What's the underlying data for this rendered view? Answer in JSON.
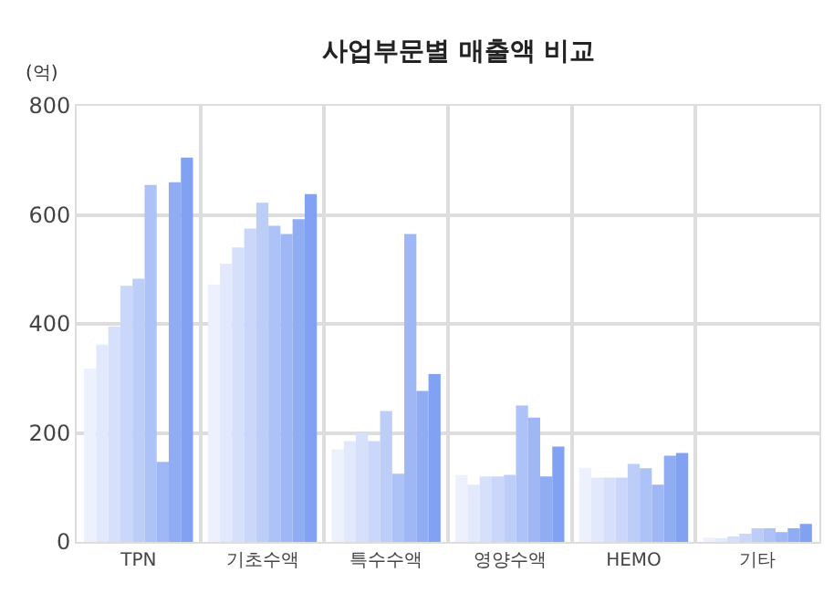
{
  "chart_data": {
    "type": "bar",
    "title": "사업부문별 매출액 비교",
    "ylabel": "(억)",
    "categories": [
      "TPN",
      "기초수액",
      "특수수액",
      "영양수액",
      "HEMO",
      "기타"
    ],
    "series": [
      {
        "color": "#edf1fd",
        "values": [
          318,
          472,
          170,
          123,
          136,
          8
        ]
      },
      {
        "color": "#e2e9fc",
        "values": [
          362,
          510,
          185,
          105,
          118,
          5
        ]
      },
      {
        "color": "#d6e0fb",
        "values": [
          395,
          540,
          200,
          120,
          118,
          10
        ]
      },
      {
        "color": "#cad7fa",
        "values": [
          470,
          575,
          185,
          120,
          118,
          15
        ]
      },
      {
        "color": "#bccdf8",
        "values": [
          483,
          622,
          240,
          123,
          143,
          25
        ]
      },
      {
        "color": "#adc2f7",
        "values": [
          655,
          580,
          125,
          250,
          135,
          25
        ]
      },
      {
        "color": "#9fb7f5",
        "values": [
          147,
          565,
          565,
          228,
          105,
          18
        ]
      },
      {
        "color": "#90adf4",
        "values": [
          660,
          592,
          277,
          120,
          158,
          25
        ]
      },
      {
        "color": "#81a2f2",
        "values": [
          705,
          638,
          308,
          175,
          163,
          33
        ]
      }
    ],
    "ylim": [
      0,
      800
    ],
    "yticks": [
      0,
      200,
      400,
      600,
      800
    ],
    "grid": true
  }
}
